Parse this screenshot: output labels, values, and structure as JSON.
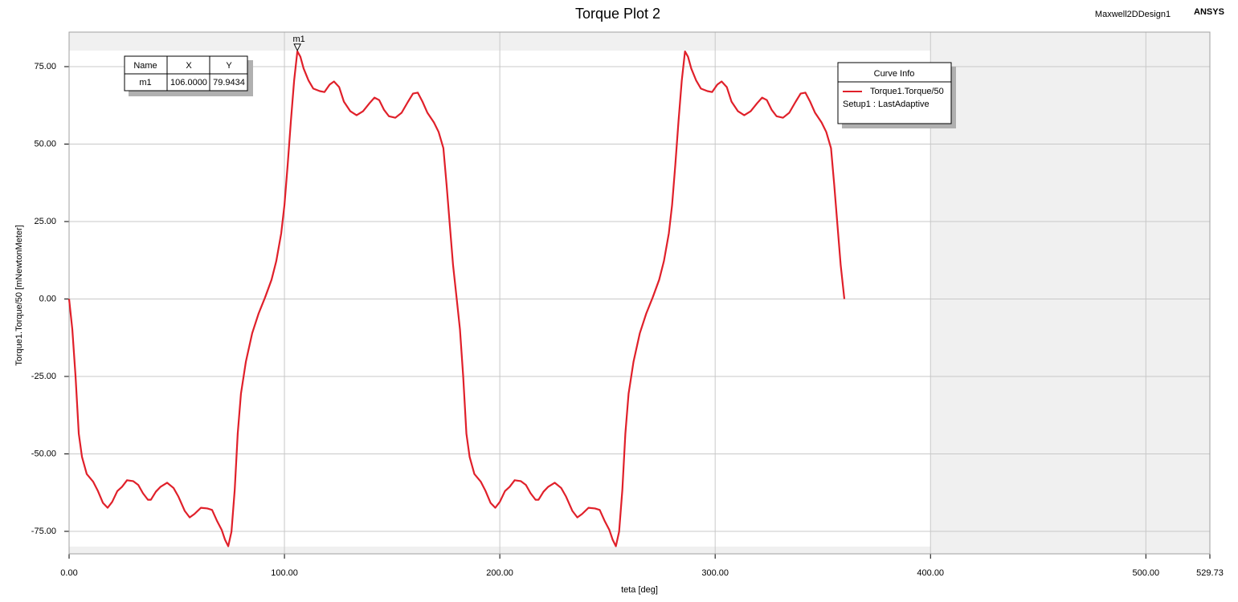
{
  "chart_data": {
    "type": "line",
    "title": "Torque Plot 2",
    "design_name": "Maxwell2DDesign1",
    "brand": "ANSYS",
    "xlabel": "teta [deg]",
    "ylabel": "Torque1.Torque/50 [mNewtonMeter]",
    "xlim": [
      0,
      529.73
    ],
    "ylim": [
      -82.26,
      86.14
    ],
    "xticks": [
      {
        "value": 0,
        "label": "0.00"
      },
      {
        "value": 100,
        "label": "100.00"
      },
      {
        "value": 200,
        "label": "200.00"
      },
      {
        "value": 300,
        "label": "300.00"
      },
      {
        "value": 400,
        "label": "400.00"
      },
      {
        "value": 500,
        "label": "500.00"
      },
      {
        "value": 529.73,
        "label": "529.73"
      }
    ],
    "yticks": [
      {
        "value": -75,
        "label": "-75.00"
      },
      {
        "value": -50,
        "label": "-50.00"
      },
      {
        "value": -25,
        "label": "-25.00"
      },
      {
        "value": 0,
        "label": "0.00"
      },
      {
        "value": 25,
        "label": "25.00"
      },
      {
        "value": 50,
        "label": "50.00"
      },
      {
        "value": 75,
        "label": "75.00"
      }
    ],
    "grid": true,
    "legend_title": "Curve Info",
    "legend_note": "Setup1 : LastAdaptive",
    "x": [
      0,
      1.5,
      3,
      4.5,
      6,
      8.2,
      11.2,
      13.4,
      15.7,
      17.9,
      20,
      22.4,
      24.6,
      26.9,
      29.8,
      32.1,
      34.3,
      36.6,
      38,
      40.3,
      42.5,
      45.5,
      48.5,
      50.7,
      53.7,
      56,
      58.2,
      61.2,
      64.2,
      66.4,
      68.6,
      70.9,
      72.4,
      73.9,
      75.4,
      76.9,
      78.3,
      79.8,
      82.1,
      85,
      88,
      91,
      94,
      96.2,
      98.5,
      100,
      101.5,
      103,
      104.5,
      106,
      107.4,
      108.9,
      111.2,
      113.4,
      116.4,
      118.6,
      121,
      123,
      125.4,
      127.6,
      130.6,
      133.5,
      136.5,
      139.5,
      141.8,
      144,
      146.2,
      148.5,
      151.5,
      154.4,
      157.4,
      159.7,
      161.9,
      164.1,
      166.4,
      169.4,
      171.6,
      173.8,
      175.3,
      176.8,
      178.3,
      180,
      181.5,
      183,
      184.5,
      186,
      188.2,
      191.2,
      193.4,
      195.7,
      197.9,
      200,
      202.4,
      204.6,
      206.9,
      209.8,
      212.1,
      214.3,
      216.6,
      218,
      220.3,
      222.5,
      225.5,
      228.5,
      230.7,
      233.7,
      236,
      238.2,
      241.2,
      244.2,
      246.4,
      248.6,
      250.9,
      252.4,
      253.9,
      255.4,
      256.9,
      258.3,
      259.8,
      262.1,
      265,
      268,
      271,
      274,
      276.2,
      278.5,
      280,
      281.5,
      283,
      284.5,
      286,
      287.4,
      288.9,
      291.2,
      293.4,
      296.4,
      298.6,
      301,
      303,
      305.4,
      307.6,
      310.6,
      313.5,
      316.5,
      319.5,
      321.8,
      324,
      326.2,
      328.5,
      331.5,
      334.4,
      337.4,
      339.7,
      341.9,
      344.1,
      346.4,
      349.4,
      351.6,
      353.8,
      355.3,
      356.8,
      358.3,
      360
    ],
    "series": [
      {
        "name": "Torque1.Torque/50",
        "color": "#e0202a",
        "values": [
          0,
          -9.8,
          -25,
          -43.5,
          -51,
          -56.5,
          -59,
          -62,
          -65.8,
          -67.4,
          -65.5,
          -62,
          -60.6,
          -58.5,
          -58.8,
          -60,
          -62.7,
          -64.8,
          -64.8,
          -62.2,
          -60.6,
          -59.3,
          -61,
          -63.7,
          -68.4,
          -70.5,
          -69.4,
          -67.4,
          -67.6,
          -68.1,
          -71.5,
          -74.6,
          -77.7,
          -79.8,
          -75.1,
          -61.7,
          -43.5,
          -30.6,
          -20.2,
          -11.1,
          -4.7,
          0.5,
          6.2,
          12.2,
          21.2,
          30.3,
          43.3,
          57.5,
          70.5,
          79.94,
          78.2,
          74.4,
          70.5,
          67.9,
          67.1,
          66.8,
          69.2,
          70.2,
          68.4,
          63.7,
          60.6,
          59.3,
          60.6,
          63.2,
          65,
          64.2,
          61.1,
          59,
          58.5,
          60.1,
          63.7,
          66.3,
          66.6,
          63.7,
          60.1,
          57,
          53.9,
          48.7,
          36.8,
          23.8,
          10.9,
          0,
          -9.8,
          -25,
          -43.5,
          -51,
          -56.5,
          -59,
          -62,
          -65.8,
          -67.4,
          -65.5,
          -62,
          -60.6,
          -58.5,
          -58.8,
          -60,
          -62.7,
          -64.8,
          -64.8,
          -62.2,
          -60.6,
          -59.3,
          -61,
          -63.7,
          -68.4,
          -70.5,
          -69.4,
          -67.4,
          -67.6,
          -68.1,
          -71.5,
          -74.6,
          -77.7,
          -79.8,
          -75.1,
          -61.7,
          -43.5,
          -30.6,
          -20.2,
          -11.1,
          -4.7,
          0.5,
          6.2,
          12.2,
          21.2,
          30.3,
          43.3,
          57.5,
          70.5,
          79.9,
          78.2,
          74.4,
          70.5,
          67.9,
          67.1,
          66.8,
          69.2,
          70.2,
          68.4,
          63.7,
          60.6,
          59.3,
          60.6,
          63.2,
          65,
          64.2,
          61.1,
          59,
          58.5,
          60.1,
          63.7,
          66.3,
          66.6,
          63.7,
          60.1,
          57,
          53.9,
          48.7,
          36.8,
          23.8,
          10.9,
          0
        ]
      }
    ],
    "marker_table_headers": [
      "Name",
      "X",
      "Y"
    ],
    "markers": [
      {
        "name": "m1",
        "x": {
          "value": 106,
          "label": "106.0000"
        },
        "y": {
          "value": 79.9434,
          "label": "79.9434"
        }
      }
    ]
  }
}
